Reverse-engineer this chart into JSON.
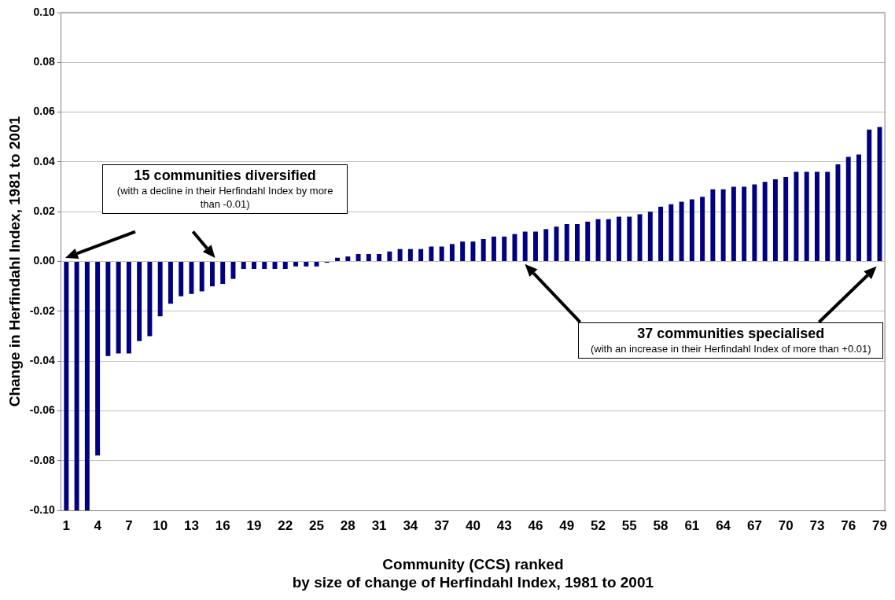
{
  "chart_data": {
    "type": "bar",
    "xlabel": "Community (CCS) ranked\nby size of change of Herfindahl Index, 1981 to 2001",
    "ylabel": "Change in Herfindahl Index, 1981 to 2001",
    "categories": [
      "1",
      null,
      null,
      "4",
      null,
      null,
      "7",
      null,
      null,
      "10",
      null,
      null,
      "13",
      null,
      null,
      "16",
      null,
      null,
      "19",
      null,
      null,
      "22",
      null,
      null,
      "25",
      null,
      null,
      "28",
      null,
      null,
      "31",
      null,
      null,
      "34",
      null,
      null,
      "37",
      null,
      null,
      "40",
      null,
      null,
      "43",
      null,
      null,
      "46",
      null,
      null,
      "49",
      null,
      null,
      "52",
      null,
      null,
      "55",
      null,
      null,
      "58",
      null,
      null,
      "61",
      null,
      null,
      "64",
      null,
      null,
      "67",
      null,
      null,
      "70",
      null,
      null,
      "73",
      null,
      null,
      "76",
      null,
      null,
      "79"
    ],
    "values": [
      -0.1,
      -0.1,
      -0.1,
      -0.078,
      -0.038,
      -0.037,
      -0.037,
      -0.032,
      -0.03,
      -0.022,
      -0.017,
      -0.014,
      -0.013,
      -0.012,
      -0.01,
      -0.009,
      -0.007,
      -0.003,
      -0.003,
      -0.003,
      -0.003,
      -0.003,
      -0.002,
      -0.002,
      -0.002,
      -0.0005,
      0.0015,
      0.002,
      0.003,
      0.003,
      0.003,
      0.004,
      0.005,
      0.005,
      0.005,
      0.006,
      0.006,
      0.007,
      0.008,
      0.008,
      0.009,
      0.01,
      0.01,
      0.011,
      0.012,
      0.012,
      0.013,
      0.014,
      0.015,
      0.015,
      0.016,
      0.017,
      0.017,
      0.018,
      0.018,
      0.019,
      0.02,
      0.022,
      0.023,
      0.024,
      0.025,
      0.026,
      0.029,
      0.029,
      0.03,
      0.03,
      0.031,
      0.032,
      0.033,
      0.034,
      0.036,
      0.036,
      0.036,
      0.036,
      0.039,
      0.042,
      0.043,
      0.053,
      0.054
    ],
    "color": "#000080",
    "ylim": [
      -0.1,
      0.1
    ],
    "yticks": [
      {
        "value": -0.1,
        "label": "-0.10"
      },
      {
        "value": -0.08,
        "label": "-0.08"
      },
      {
        "value": -0.06,
        "label": "-0.06"
      },
      {
        "value": -0.04,
        "label": "-0.04"
      },
      {
        "value": -0.02,
        "label": "-0.02"
      },
      {
        "value": 0,
        "label": "0.00"
      },
      {
        "value": 0.02,
        "label": "0.02"
      },
      {
        "value": 0.04,
        "label": "0.04"
      },
      {
        "value": 0.06,
        "label": "0.06"
      },
      {
        "value": 0.08,
        "label": "0.08"
      },
      {
        "value": 0.1,
        "label": "0.10"
      }
    ],
    "grid": "y",
    "annotations": [
      "15 communities diversified",
      "(with a decline in their Herfindahl Index by more than -0.01)",
      "37 communities specialised",
      "(with an increase in their Herfindahl Index of more than +0.01)"
    ]
  }
}
